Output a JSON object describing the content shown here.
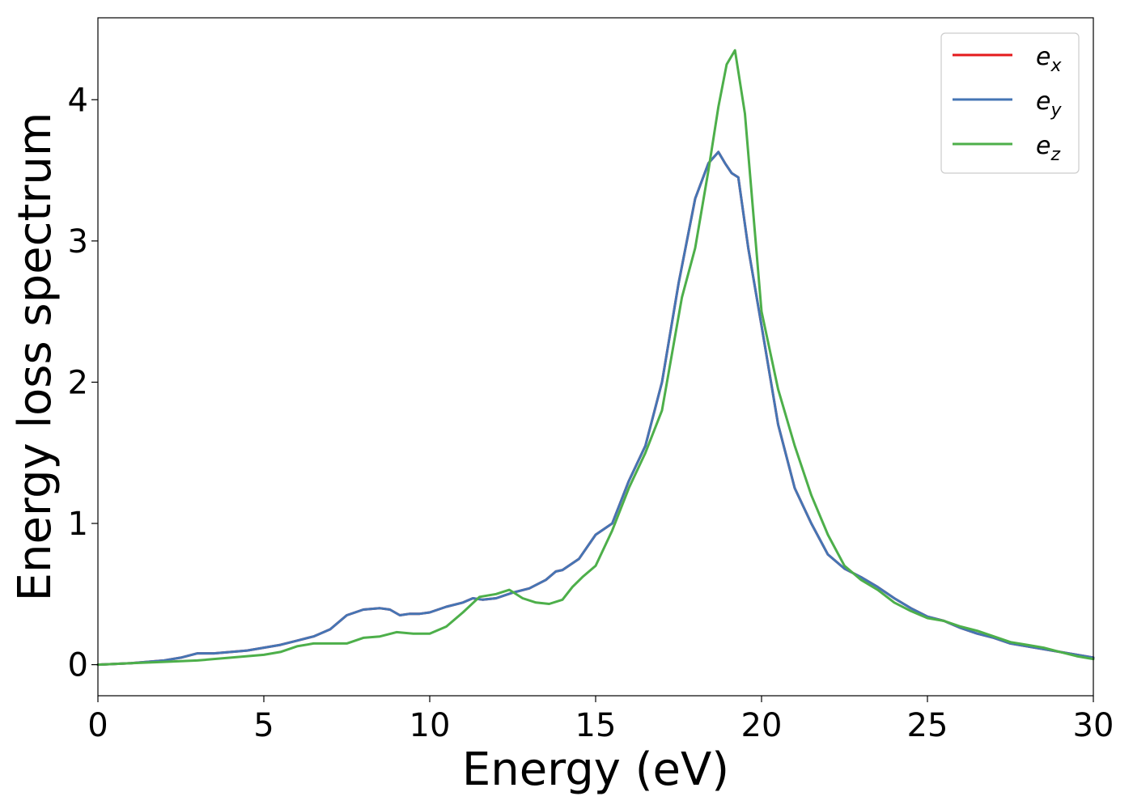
{
  "chart_data": {
    "type": "line",
    "title": "",
    "xlabel": "Energy (eV)",
    "ylabel": "Energy loss spectrum",
    "xlim": [
      0,
      30
    ],
    "ylim": [
      -0.22,
      4.58
    ],
    "xticks": [
      0,
      5,
      10,
      15,
      20,
      25,
      30
    ],
    "yticks": [
      0,
      1,
      2,
      3,
      4
    ],
    "xtick_labels": [
      "0",
      "5",
      "10",
      "15",
      "20",
      "25",
      "30"
    ],
    "ytick_labels": [
      "0",
      "1",
      "2",
      "3",
      "4"
    ],
    "grid": false,
    "legend_position": "top-right",
    "series": [
      {
        "name": "e_x",
        "legend_base": "e",
        "legend_sub": "x",
        "color": "#e41a1c",
        "x": [
          0,
          1,
          2,
          2.5,
          3,
          3.5,
          4,
          4.5,
          5,
          5.5,
          6,
          6.5,
          7,
          7.5,
          8,
          8.5,
          8.8,
          9.1,
          9.4,
          9.7,
          10,
          10.5,
          11,
          11.3,
          11.6,
          12,
          12.5,
          13,
          13.5,
          13.8,
          14,
          14.5,
          15,
          15.5,
          16,
          16.5,
          17,
          17.5,
          18,
          18.4,
          18.7,
          18.9,
          19.1,
          19.3,
          19.6,
          20,
          20.5,
          21,
          21.5,
          22,
          22.5,
          23,
          23.5,
          24,
          24.5,
          25,
          25.5,
          26,
          26.5,
          27,
          27.5,
          28,
          28.5,
          29,
          29.5,
          30
        ],
        "y": [
          0,
          0.01,
          0.03,
          0.05,
          0.08,
          0.08,
          0.09,
          0.1,
          0.12,
          0.14,
          0.17,
          0.2,
          0.25,
          0.35,
          0.39,
          0.4,
          0.39,
          0.35,
          0.36,
          0.36,
          0.37,
          0.41,
          0.44,
          0.47,
          0.46,
          0.47,
          0.51,
          0.54,
          0.6,
          0.66,
          0.67,
          0.75,
          0.92,
          1.0,
          1.3,
          1.55,
          2.0,
          2.7,
          3.3,
          3.55,
          3.63,
          3.55,
          3.48,
          3.45,
          2.95,
          2.4,
          1.7,
          1.25,
          1.0,
          0.78,
          0.68,
          0.62,
          0.55,
          0.47,
          0.4,
          0.34,
          0.31,
          0.26,
          0.22,
          0.19,
          0.15,
          0.13,
          0.11,
          0.09,
          0.07,
          0.05
        ]
      },
      {
        "name": "e_y",
        "legend_base": "e",
        "legend_sub": "y",
        "color": "#4575b4",
        "x": [
          0,
          1,
          2,
          2.5,
          3,
          3.5,
          4,
          4.5,
          5,
          5.5,
          6,
          6.5,
          7,
          7.5,
          8,
          8.5,
          8.8,
          9.1,
          9.4,
          9.7,
          10,
          10.5,
          11,
          11.3,
          11.6,
          12,
          12.5,
          13,
          13.5,
          13.8,
          14,
          14.5,
          15,
          15.5,
          16,
          16.5,
          17,
          17.5,
          18,
          18.4,
          18.7,
          18.9,
          19.1,
          19.3,
          19.6,
          20,
          20.5,
          21,
          21.5,
          22,
          22.5,
          23,
          23.5,
          24,
          24.5,
          25,
          25.5,
          26,
          26.5,
          27,
          27.5,
          28,
          28.5,
          29,
          29.5,
          30
        ],
        "y": [
          0,
          0.01,
          0.03,
          0.05,
          0.08,
          0.08,
          0.09,
          0.1,
          0.12,
          0.14,
          0.17,
          0.2,
          0.25,
          0.35,
          0.39,
          0.4,
          0.39,
          0.35,
          0.36,
          0.36,
          0.37,
          0.41,
          0.44,
          0.47,
          0.46,
          0.47,
          0.51,
          0.54,
          0.6,
          0.66,
          0.67,
          0.75,
          0.92,
          1.0,
          1.3,
          1.55,
          2.0,
          2.7,
          3.3,
          3.55,
          3.63,
          3.55,
          3.48,
          3.45,
          2.95,
          2.4,
          1.7,
          1.25,
          1.0,
          0.78,
          0.68,
          0.62,
          0.55,
          0.47,
          0.4,
          0.34,
          0.31,
          0.26,
          0.22,
          0.19,
          0.15,
          0.13,
          0.11,
          0.09,
          0.07,
          0.05
        ]
      },
      {
        "name": "e_z",
        "legend_base": "e",
        "legend_sub": "z",
        "color": "#4daf4a",
        "x": [
          0,
          1,
          2,
          3,
          4,
          5,
          5.5,
          6,
          6.5,
          7,
          7.5,
          8,
          8.5,
          9,
          9.5,
          10,
          10.5,
          11,
          11.5,
          12,
          12.4,
          12.8,
          13.2,
          13.6,
          14,
          14.3,
          14.6,
          15,
          15.5,
          16,
          16.5,
          17,
          17.3,
          17.6,
          18,
          18.4,
          18.7,
          18.95,
          19.2,
          19.5,
          20,
          20.5,
          21,
          21.5,
          22,
          22.5,
          23,
          23.5,
          24,
          24.5,
          25,
          25.5,
          26,
          26.5,
          27,
          27.5,
          28,
          28.5,
          29,
          29.5,
          30
        ],
        "y": [
          0,
          0.01,
          0.02,
          0.03,
          0.05,
          0.07,
          0.09,
          0.13,
          0.15,
          0.15,
          0.15,
          0.19,
          0.2,
          0.23,
          0.22,
          0.22,
          0.27,
          0.37,
          0.48,
          0.5,
          0.53,
          0.47,
          0.44,
          0.43,
          0.46,
          0.55,
          0.62,
          0.7,
          0.95,
          1.25,
          1.5,
          1.8,
          2.2,
          2.6,
          2.95,
          3.5,
          3.95,
          4.25,
          4.35,
          3.9,
          2.5,
          1.95,
          1.55,
          1.2,
          0.92,
          0.7,
          0.6,
          0.53,
          0.44,
          0.38,
          0.33,
          0.31,
          0.27,
          0.24,
          0.2,
          0.16,
          0.14,
          0.12,
          0.09,
          0.06,
          0.04
        ]
      }
    ]
  }
}
